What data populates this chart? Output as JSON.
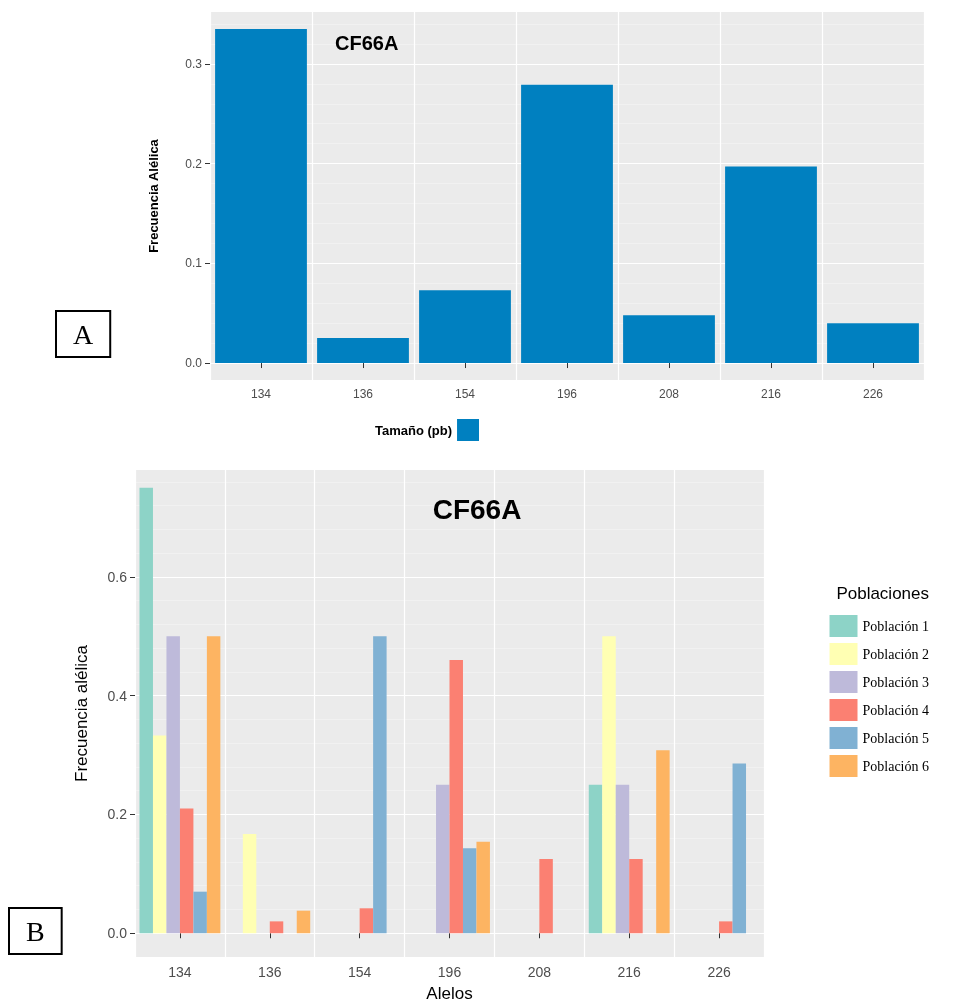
{
  "chart_data": [
    {
      "type": "bar",
      "title": "CF66A",
      "xlabel": null,
      "ylabel": "Frecuencia Alélica",
      "legend": "bottom",
      "annotations": [
        "A"
      ],
      "categories": [
        "134",
        "136",
        "154",
        "196",
        "208",
        "216",
        "226"
      ],
      "series": [
        {
          "name": "Tamaño (pb)",
          "color": "#0080c0",
          "values": [
            0.335,
            0.025,
            0.073,
            0.279,
            0.048,
            0.197,
            0.04
          ]
        }
      ],
      "ylim": [
        -0.017,
        0.352
      ],
      "yticks": [
        {
          "value": 0,
          "label": "0.0"
        },
        0.1,
        0.2,
        0.3
      ],
      "grid": true
    },
    {
      "type": "bar",
      "title": "CF66A",
      "xlabel": "Alelos",
      "ylabel": "Frecuencia alélica",
      "legend_title": "Poblaciones",
      "legend": "right",
      "annotations": [
        "B"
      ],
      "categories": [
        "134",
        "136",
        "154",
        "196",
        "208",
        "216",
        "226"
      ],
      "series": [
        {
          "name": "Población 1",
          "color": "#8dd3c7",
          "values": [
            0.75,
            null,
            null,
            null,
            null,
            0.25,
            null
          ]
        },
        {
          "name": "Población 2",
          "color": "#ffffb3",
          "values": [
            0.333,
            0.167,
            null,
            null,
            null,
            0.5,
            null
          ]
        },
        {
          "name": "Población 3",
          "color": "#bebada",
          "values": [
            0.5,
            null,
            null,
            0.25,
            null,
            0.25,
            null
          ]
        },
        {
          "name": "Población 4",
          "color": "#fb8072",
          "values": [
            0.21,
            0.02,
            0.042,
            0.46,
            0.125,
            0.125,
            0.02
          ]
        },
        {
          "name": "Población 5",
          "color": "#80b1d3",
          "values": [
            0.07,
            null,
            0.5,
            0.143,
            null,
            null,
            0.286
          ]
        },
        {
          "name": "Población 6",
          "color": "#fdb462",
          "values": [
            0.5,
            0.038,
            null,
            0.154,
            null,
            0.308,
            null
          ]
        }
      ],
      "ylim": [
        -0.04,
        0.78
      ],
      "yticks": [
        {
          "value": 0,
          "label": "0.0"
        },
        {
          "value": 0.2,
          "label": "0.2"
        },
        {
          "value": 0.4,
          "label": "0.4"
        },
        {
          "value": 0.6,
          "label": "0.6"
        }
      ],
      "grid": true
    }
  ]
}
